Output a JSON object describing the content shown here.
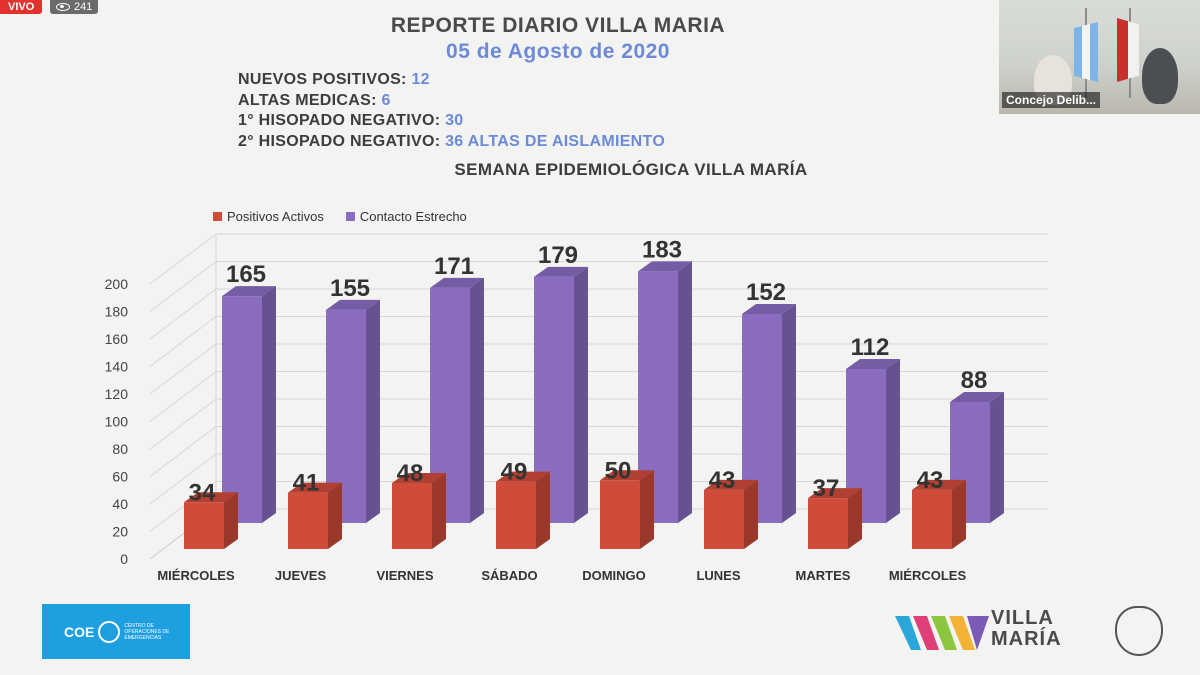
{
  "stream": {
    "live_label": "VIVO",
    "viewers": "241"
  },
  "header": {
    "title": "REPORTE DIARIO VILLA MARIA",
    "date": "05 de Agosto de 2020"
  },
  "stats": [
    {
      "label": "NUEVOS POSITIVOS:",
      "value": "12"
    },
    {
      "label": "ALTAS MEDICAS:",
      "value": "6"
    },
    {
      "label": "1° HISOPADO NEGATIVO:",
      "value": "30"
    },
    {
      "label": "2° HISOPADO NEGATIVO:",
      "value": "36 ALTAS DE AISLAMIENTO"
    }
  ],
  "video": {
    "label": "Concejo Delib..."
  },
  "logos": {
    "coe_name": "COE",
    "coe_sub": "CENTRO DE OPERACIONES DE EMERGENCIAS",
    "vm_line1": "VILLA",
    "vm_line2": "MARÍA"
  },
  "chart_data": {
    "type": "bar",
    "title": "SEMANA EPIDEMIOLÓGICA VILLA MARÍA",
    "categories": [
      "MIÉRCOLES",
      "JUEVES",
      "VIERNES",
      "SÁBADO",
      "DOMINGO",
      "LUNES",
      "MARTES",
      "MIÉRCOLES"
    ],
    "series": [
      {
        "name": "Positivos Activos",
        "color": "#cf4b3a",
        "values": [
          34,
          41,
          48,
          49,
          50,
          43,
          37,
          43
        ]
      },
      {
        "name": "Contacto Estrecho",
        "color": "#8a6cc1",
        "values": [
          165,
          155,
          171,
          179,
          183,
          152,
          112,
          88
        ]
      }
    ],
    "ylim": [
      0,
      200
    ],
    "yticks": [
      0,
      20,
      40,
      60,
      80,
      100,
      120,
      140,
      160,
      180,
      200
    ],
    "grid": true,
    "legend": "top-left",
    "style": "3d-column"
  }
}
